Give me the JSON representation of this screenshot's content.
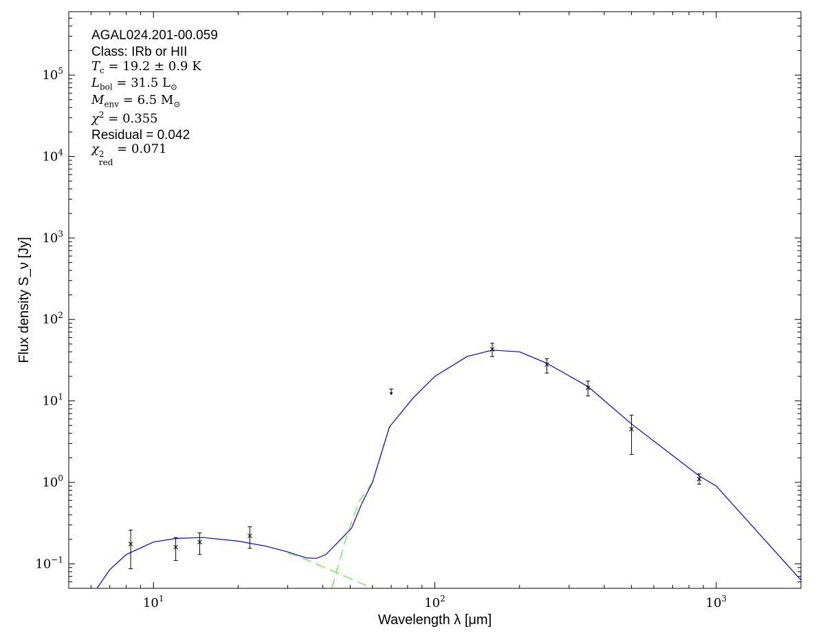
{
  "chart_data": {
    "type": "scatter",
    "xlabel": "Wavelength λ [μm]",
    "ylabel": "Flux density S_ν [Jy]",
    "xscale": "log",
    "yscale": "log",
    "xlim": [
      5,
      2000
    ],
    "ylim": [
      0.05,
      600000
    ],
    "xticks": [
      {
        "v": 10,
        "m": "1"
      },
      {
        "v": 100,
        "m": "2"
      },
      {
        "v": 1000,
        "m": "3"
      }
    ],
    "yticks": [
      {
        "v": 0.1,
        "m": "−1"
      },
      {
        "v": 1,
        "m": "0"
      },
      {
        "v": 10,
        "m": "1"
      },
      {
        "v": 100,
        "m": "2"
      },
      {
        "v": 1000,
        "m": "3"
      },
      {
        "v": 10000,
        "m": "4"
      },
      {
        "v": 100000,
        "m": "5"
      }
    ],
    "grid": false,
    "colors": {
      "model": "#0000ff",
      "components": "#66ee44",
      "points": "#000000"
    },
    "points": [
      {
        "x": 8.3,
        "y": 0.175,
        "lo": 0.087,
        "hi": 0.26
      },
      {
        "x": 12,
        "y": 0.16,
        "lo": 0.11,
        "hi": 0.21
      },
      {
        "x": 14.6,
        "y": 0.185,
        "lo": 0.13,
        "hi": 0.24
      },
      {
        "x": 22,
        "y": 0.22,
        "lo": 0.155,
        "hi": 0.285
      },
      {
        "x": 160,
        "y": 43,
        "lo": 35,
        "hi": 51
      },
      {
        "x": 250,
        "y": 28,
        "lo": 22,
        "hi": 33
      },
      {
        "x": 350,
        "y": 14.5,
        "lo": 11.5,
        "hi": 17.5
      },
      {
        "x": 500,
        "y": 4.5,
        "lo": 2.2,
        "hi": 6.7
      },
      {
        "x": 870,
        "y": 1.1,
        "lo": 0.95,
        "hi": 1.27
      }
    ],
    "upper_limits": [
      {
        "x": 70,
        "y": 14
      }
    ],
    "model": [
      [
        6.3,
        0.05
      ],
      [
        7,
        0.085
      ],
      [
        8,
        0.13
      ],
      [
        10,
        0.185
      ],
      [
        12,
        0.205
      ],
      [
        15,
        0.21
      ],
      [
        20,
        0.19
      ],
      [
        25,
        0.165
      ],
      [
        30,
        0.14
      ],
      [
        35,
        0.118
      ],
      [
        38,
        0.117
      ],
      [
        41,
        0.13
      ],
      [
        45,
        0.18
      ],
      [
        50.6,
        0.275
      ],
      [
        55,
        0.55
      ],
      [
        60,
        1.0
      ],
      [
        69,
        4.8
      ],
      [
        84,
        11
      ],
      [
        100,
        20
      ],
      [
        130,
        35
      ],
      [
        160,
        42
      ],
      [
        200,
        40
      ],
      [
        250,
        29
      ],
      [
        350,
        15
      ],
      [
        500,
        5.2
      ],
      [
        870,
        1.2
      ],
      [
        1000,
        0.9
      ],
      [
        2000,
        0.063
      ]
    ],
    "warm_component": [
      [
        30,
        0.135
      ],
      [
        35,
        0.112
      ],
      [
        40,
        0.092
      ],
      [
        50,
        0.066
      ],
      [
        60,
        0.05
      ]
    ],
    "cold_component": [
      [
        43,
        0.05
      ],
      [
        47.8,
        0.18
      ],
      [
        53.5,
        0.57
      ],
      [
        60,
        1.0
      ],
      [
        69,
        4.8
      ]
    ],
    "annotations": {
      "source": "AGAL024.201-00.059",
      "class": "Class: IRb or HII",
      "tc": {
        "sym": "T",
        "sub": "c",
        "rest": " = 19.2 ± 0.9 K"
      },
      "lbol": {
        "sym": "L",
        "sub": "bol",
        "rest": " = 31.5 L",
        "unit_sub": "⊙"
      },
      "menv": {
        "sym": "M",
        "sub": "env",
        "rest": " = 6.5 M",
        "unit_sub": "⊙"
      },
      "chi2": {
        "sym": "χ",
        "sup": "2",
        "rest": " = 0.355"
      },
      "residual": "Residual = 0.042",
      "chi2red": {
        "sym": "χ",
        "sup": "2",
        "sub": "red",
        "rest": " = 0.071"
      }
    }
  }
}
